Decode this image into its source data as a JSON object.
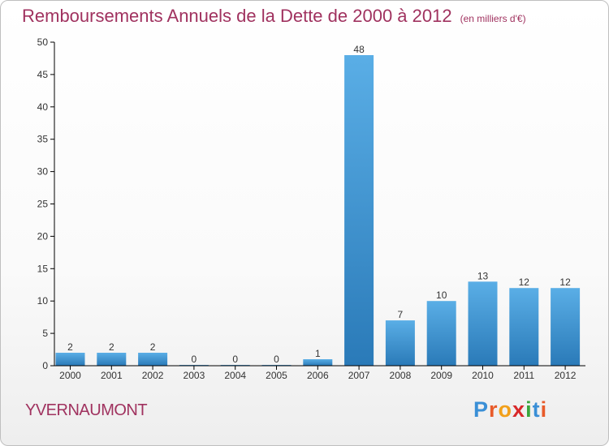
{
  "title": {
    "main": "Remboursements Annuels de la Dette de 2000 à 2012",
    "unit": "(en milliers d'€)"
  },
  "commune": "YVERNAUMONT",
  "brand": {
    "letters": [
      {
        "char": "P",
        "color": "#3a8fd6"
      },
      {
        "char": "r",
        "color": "#e85b2a"
      },
      {
        "char": "o",
        "color": "#f2a01a"
      },
      {
        "char": "x",
        "color": "#d8282a"
      },
      {
        "char": "i",
        "color": "#3aa63c"
      },
      {
        "char": "t",
        "color": "#3a8fd6"
      },
      {
        "char": "i",
        "color": "#e85b2a"
      }
    ]
  },
  "chart_data": {
    "type": "bar",
    "categories": [
      "2000",
      "2001",
      "2002",
      "2003",
      "2004",
      "2005",
      "2006",
      "2007",
      "2008",
      "2009",
      "2010",
      "2011",
      "2012"
    ],
    "values": [
      2,
      2,
      2,
      0,
      0,
      0,
      1,
      48,
      7,
      10,
      13,
      12,
      12
    ],
    "data_labels": [
      "2",
      "2",
      "2",
      "0",
      "0",
      "0",
      "1",
      "48",
      "7",
      "10",
      "13",
      "12",
      "12"
    ],
    "ylim": [
      0,
      50
    ],
    "yticks": [
      0,
      5,
      10,
      15,
      20,
      25,
      30,
      35,
      40,
      45,
      50
    ],
    "grid": false,
    "colors": {
      "bar_light": "#5aaee6",
      "bar_dark": "#2a7ab8",
      "axis": "#000000",
      "label": "#333333"
    }
  }
}
